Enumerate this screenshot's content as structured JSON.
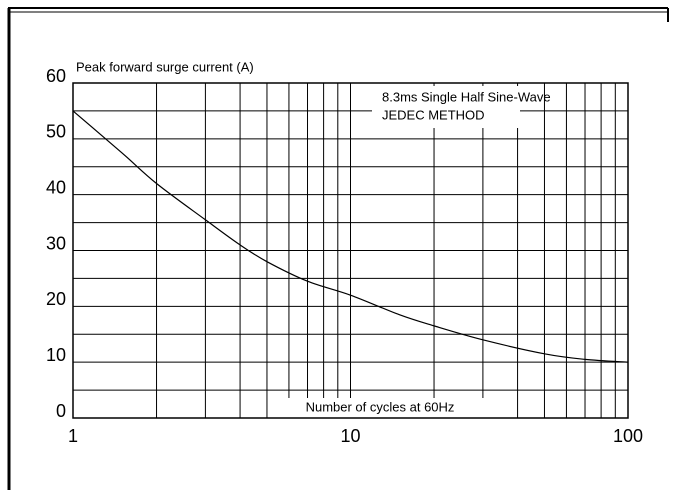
{
  "chart_data": {
    "type": "line",
    "log_x": true,
    "y_axis_label": "Peak forward surge current (A)",
    "x_axis_label": "Number of cycles at 60Hz",
    "annotations": [
      "8.3ms Single Half Sine-Wave",
      "JEDEC METHOD"
    ],
    "x": [
      1,
      1.5,
      2,
      3,
      4,
      5,
      7,
      10,
      15,
      20,
      30,
      50,
      70,
      100
    ],
    "series": [
      {
        "color": "#000000",
        "values": [
          55,
          47.5,
          42,
          35.5,
          31,
          28,
          24.5,
          22,
          18.5,
          16.5,
          14,
          11.5,
          10.5,
          10
        ]
      }
    ],
    "xlim": [
      1,
      100
    ],
    "xticks": [
      1,
      10,
      100
    ],
    "x_minor_ticks": [
      2,
      3,
      4,
      5,
      6,
      7,
      8,
      9,
      20,
      30,
      40,
      50,
      60,
      70,
      80,
      90
    ],
    "ylim": [
      0,
      60
    ],
    "yticks": [
      0,
      10,
      20,
      30,
      40,
      50,
      60
    ],
    "y_minor_ticks": [
      5,
      15,
      25,
      35,
      45,
      55
    ],
    "grid": true
  }
}
